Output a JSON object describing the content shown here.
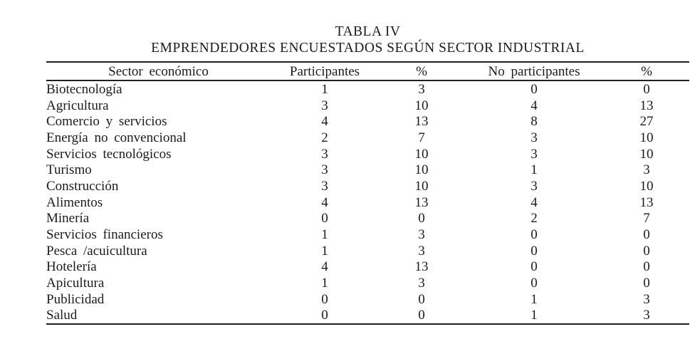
{
  "table": {
    "title": "TABLA IV",
    "subtitle": "EMPRENDEDORES ENCUESTADOS SEGÚN SECTOR INDUSTRIAL",
    "columns": [
      "Sector económico",
      "Participantes",
      "%",
      "No participantes",
      "%"
    ],
    "rows": [
      [
        "Biotecnología",
        "1",
        "3",
        "0",
        "0"
      ],
      [
        "Agricultura",
        "3",
        "10",
        "4",
        "13"
      ],
      [
        "Comercio y servicios",
        "4",
        "13",
        "8",
        "27"
      ],
      [
        "Energía no convencional",
        "2",
        "7",
        "3",
        "10"
      ],
      [
        "Servicios tecnológicos",
        "3",
        "10",
        "3",
        "10"
      ],
      [
        "Turismo",
        "3",
        "10",
        "1",
        "3"
      ],
      [
        "Construcción",
        "3",
        "10",
        "3",
        "10"
      ],
      [
        "Alimentos",
        "4",
        "13",
        "4",
        "13"
      ],
      [
        "Minería",
        "0",
        "0",
        "2",
        "7"
      ],
      [
        "Servicios financieros",
        "1",
        "3",
        "0",
        "0"
      ],
      [
        "Pesca /acuicultura",
        "1",
        "3",
        "0",
        "0"
      ],
      [
        "Hotelería",
        "4",
        "13",
        "0",
        "0"
      ],
      [
        "Apicultura",
        "1",
        "3",
        "0",
        "0"
      ],
      [
        "Publicidad",
        "0",
        "0",
        "1",
        "3"
      ],
      [
        "Salud",
        "0",
        "0",
        "1",
        "3"
      ]
    ],
    "text_color": "#1b1b1b",
    "rule_color": "#202020"
  }
}
